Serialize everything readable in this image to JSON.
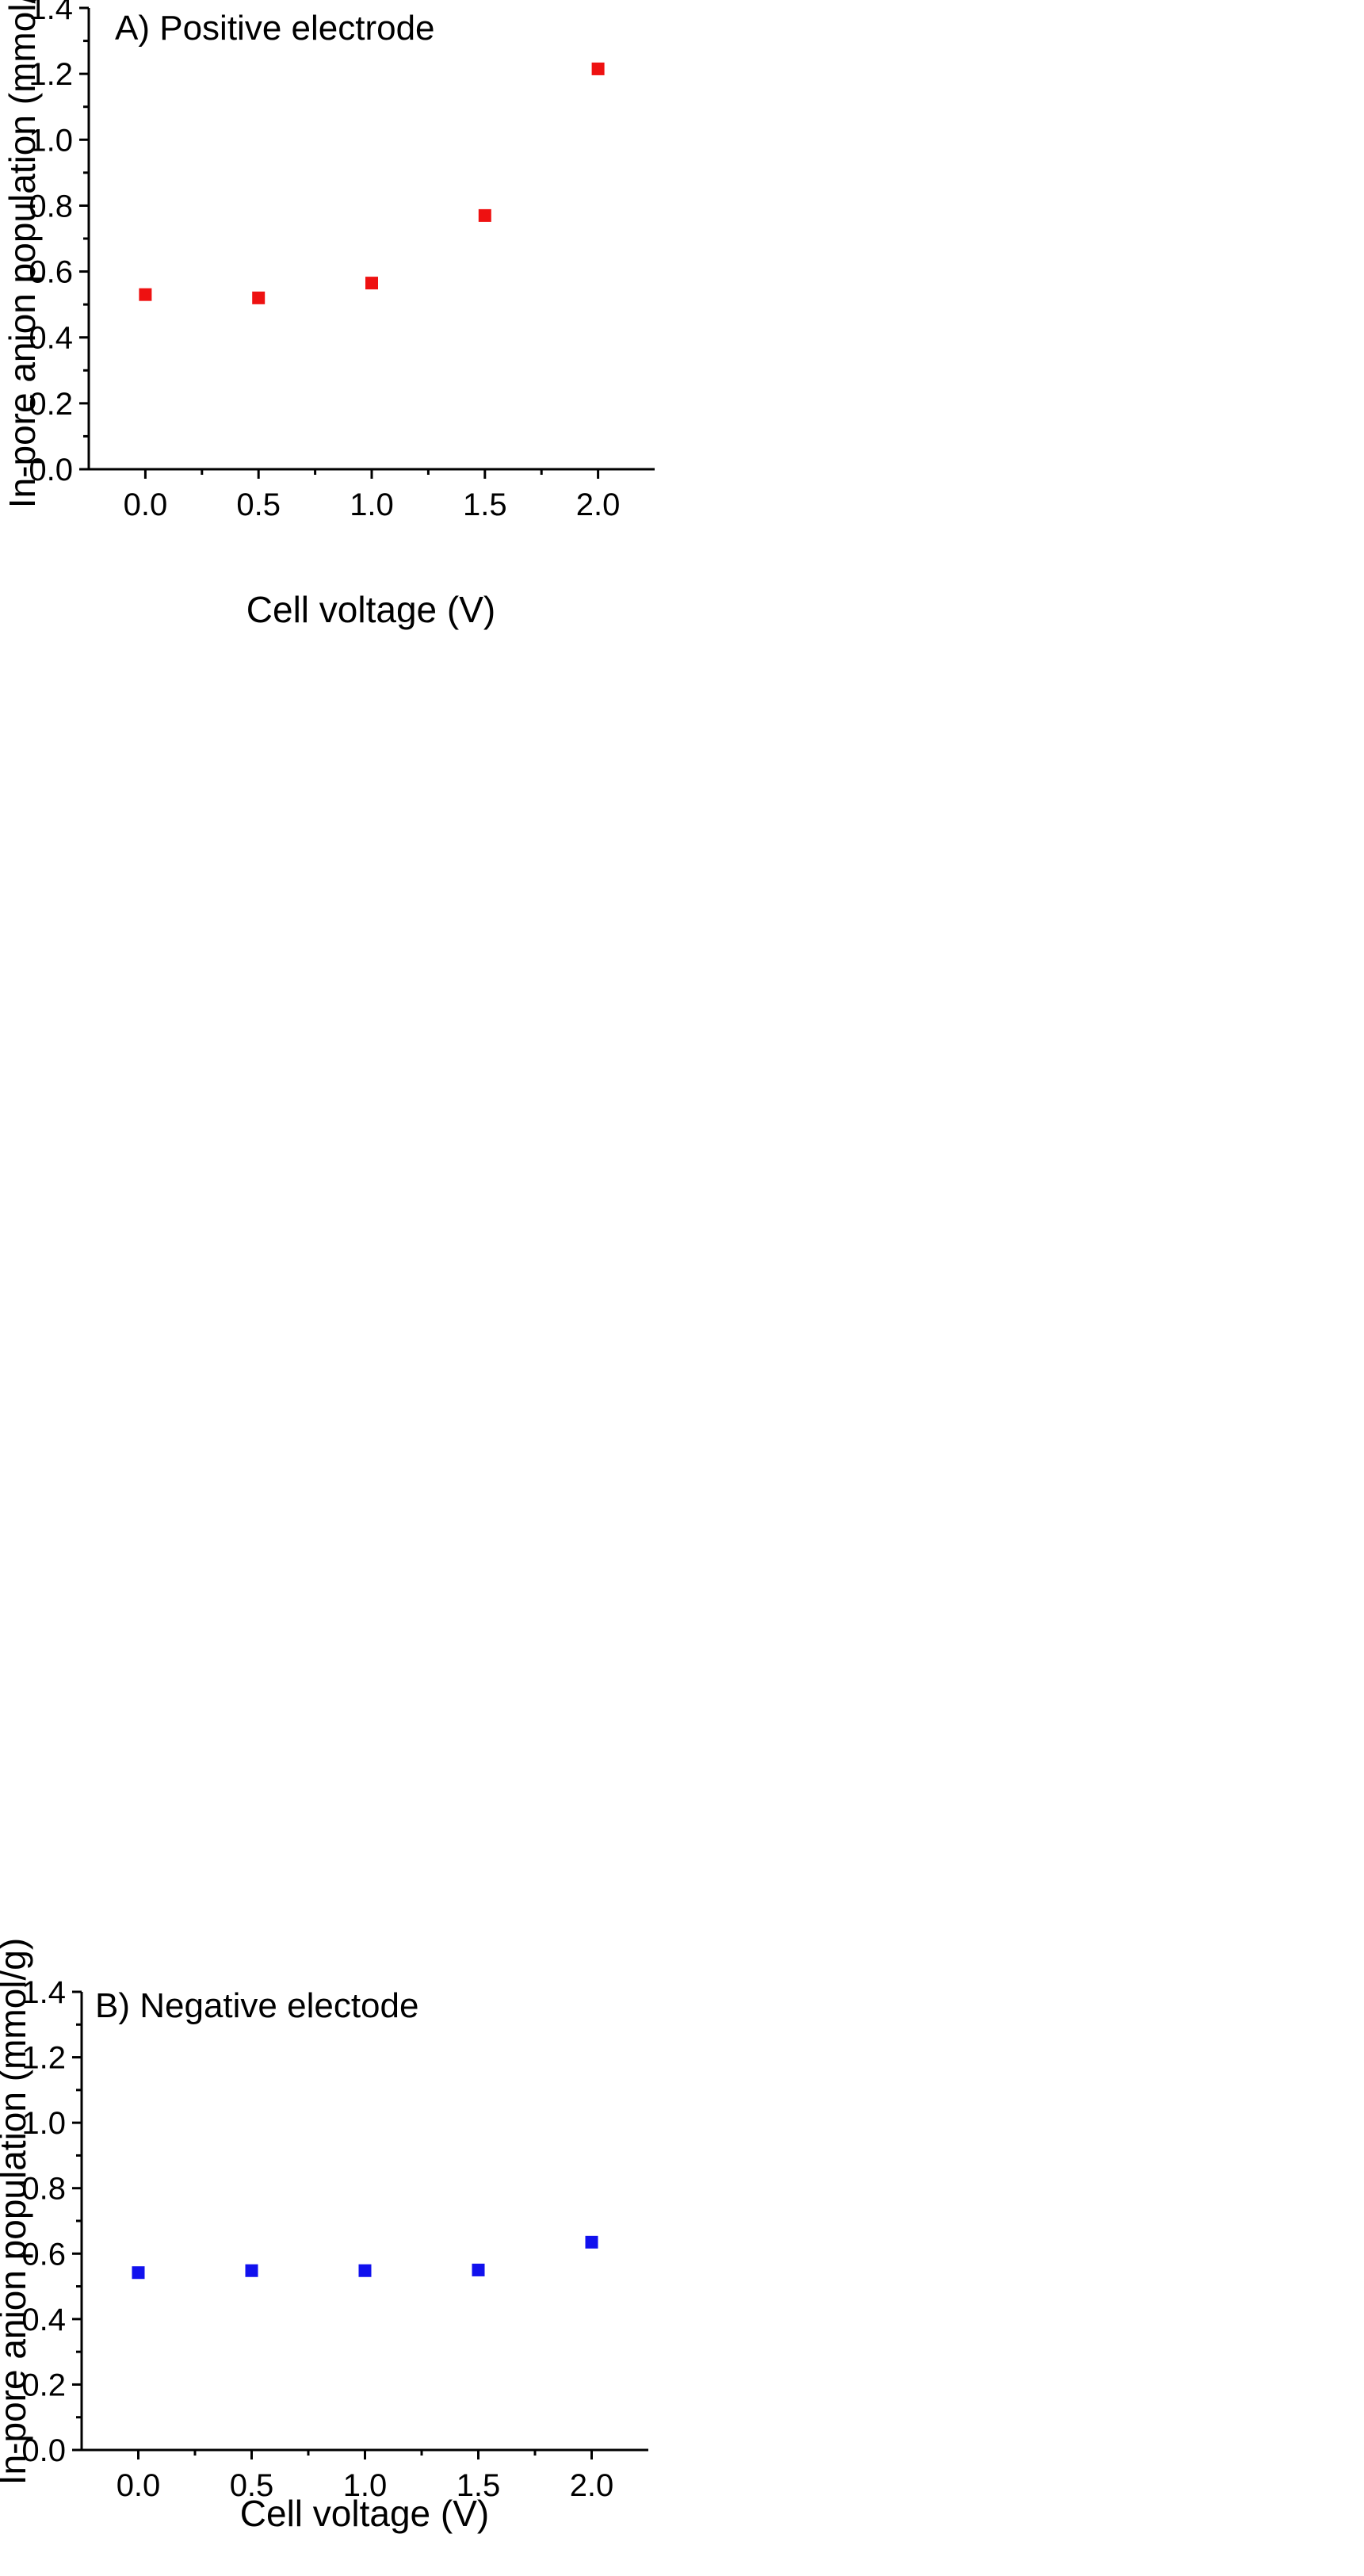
{
  "chart_data": [
    {
      "type": "scatter",
      "title": "A) Positive electrode",
      "xlabel": "Cell voltage (V)",
      "ylabel": "In-pore anion population (mmol/g)",
      "xlim": [
        -0.25,
        2.25
      ],
      "ylim": [
        0.0,
        1.4
      ],
      "xticks": [
        "0.0",
        "0.5",
        "1.0",
        "1.5",
        "2.0"
      ],
      "yticks": [
        "0.0",
        "0.2",
        "0.4",
        "0.6",
        "0.8",
        "1.0",
        "1.2",
        "1.4"
      ],
      "marker": "square",
      "color": "#ee1111",
      "series": [
        {
          "x": [
            0.0,
            0.5,
            1.0,
            1.5,
            2.0
          ],
          "y": [
            0.53,
            0.52,
            0.565,
            0.77,
            1.215
          ]
        }
      ]
    },
    {
      "type": "scatter",
      "title": "B) Negative electode",
      "xlabel": "Cell voltage (V)",
      "ylabel": "In-pore anion population (mmol/g)",
      "xlim": [
        -0.25,
        2.25
      ],
      "ylim": [
        0.0,
        1.4
      ],
      "xticks": [
        "0.0",
        "0.5",
        "1.0",
        "1.5",
        "2.0"
      ],
      "yticks": [
        "0.0",
        "0.2",
        "0.4",
        "0.6",
        "0.8",
        "1.0",
        "1.2",
        "1.4"
      ],
      "marker": "square",
      "color": "#1111ee",
      "series": [
        {
          "x": [
            0.0,
            0.5,
            1.0,
            1.5,
            2.0
          ],
          "y": [
            0.542,
            0.548,
            0.548,
            0.55,
            0.635
          ]
        }
      ]
    }
  ]
}
